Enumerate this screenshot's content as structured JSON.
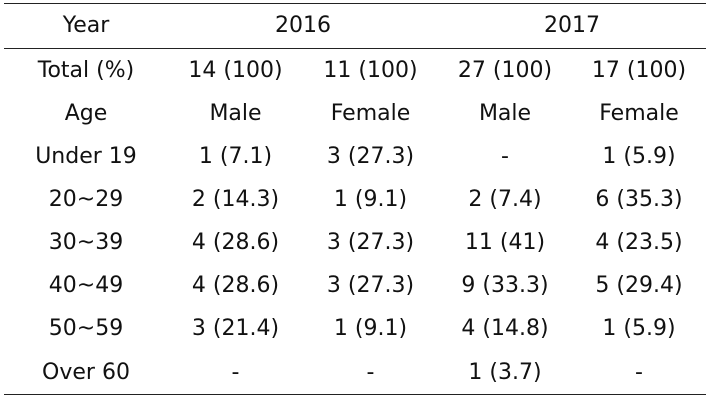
{
  "table": {
    "header": {
      "year_label": "Year",
      "year_2016": "2016",
      "year_2017": "2017"
    },
    "total_row": {
      "label": "Total (%)",
      "values": [
        "14 (100)",
        "11 (100)",
        "27 (100)",
        "17 (100)"
      ]
    },
    "gender_row": {
      "label": "Age",
      "values": [
        "Male",
        "Female",
        "Male",
        "Female"
      ]
    },
    "rows": [
      {
        "label": "Under 19",
        "values": [
          "1 (7.1)",
          "3 (27.3)",
          "-",
          "1 (5.9)"
        ]
      },
      {
        "label": "20~29",
        "values": [
          "2 (14.3)",
          "1 (9.1)",
          "2 (7.4)",
          "6 (35.3)"
        ]
      },
      {
        "label": "30~39",
        "values": [
          "4 (28.6)",
          "3 (27.3)",
          "11 (41)",
          "4 (23.5)"
        ]
      },
      {
        "label": "40~49",
        "values": [
          "4 (28.6)",
          "3 (27.3)",
          "9 (33.3)",
          "5 (29.4)"
        ]
      },
      {
        "label": "50~59",
        "values": [
          "3 (21.4)",
          "1 (9.1)",
          "4 (14.8)",
          "1 (5.9)"
        ]
      },
      {
        "label": "Over 60",
        "values": [
          "-",
          "-",
          "1 (3.7)",
          "-"
        ]
      }
    ]
  }
}
